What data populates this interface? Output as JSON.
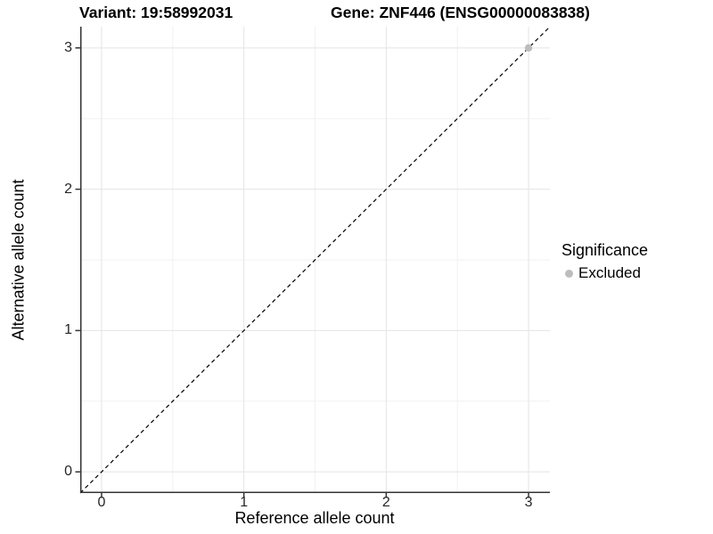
{
  "header": {
    "variant_title": "Variant: 19:58992031",
    "gene_title": "Gene: ZNF446 (ENSG00000083838)"
  },
  "axes": {
    "x": {
      "label": "Reference allele count",
      "ticks": [
        "0",
        "1",
        "2",
        "3"
      ]
    },
    "y": {
      "label": "Alternative allele count",
      "ticks": [
        "0",
        "1",
        "2",
        "3"
      ]
    }
  },
  "legend": {
    "title": "Significance",
    "items": [
      {
        "label": "Excluded",
        "color": "#bdbdbd"
      }
    ]
  },
  "chart_data": {
    "type": "scatter",
    "title": "Variant: 19:58992031 — Gene: ZNF446 (ENSG00000083838)",
    "xlabel": "Reference allele count",
    "ylabel": "Alternative allele count",
    "xlim": [
      -0.15,
      3.15
    ],
    "ylim": [
      -0.15,
      3.15
    ],
    "x_ticks": [
      0,
      1,
      2,
      3
    ],
    "y_ticks": [
      0,
      1,
      2,
      3
    ],
    "x_minor_ticks": [
      0.5,
      1.5,
      2.5
    ],
    "y_minor_ticks": [
      0.5,
      1.5,
      2.5
    ],
    "grid": true,
    "legend_position": "right",
    "series": [
      {
        "name": "Excluded",
        "color": "#bdbdbd",
        "points": [
          {
            "x": 3,
            "y": 3
          }
        ]
      }
    ],
    "reference_line": {
      "slope": 1,
      "intercept": 0,
      "style": "dashed",
      "color": "#000000",
      "description": "identity line y = x"
    }
  },
  "style": {
    "background": "#ffffff",
    "grid_major_color": "#e4e4e4",
    "grid_minor_color": "#f1f1f1",
    "axis_line_color": "#333333",
    "tick_label_color": "#262626",
    "point_color": "#bdbdbd",
    "point_radius": 4.2
  }
}
